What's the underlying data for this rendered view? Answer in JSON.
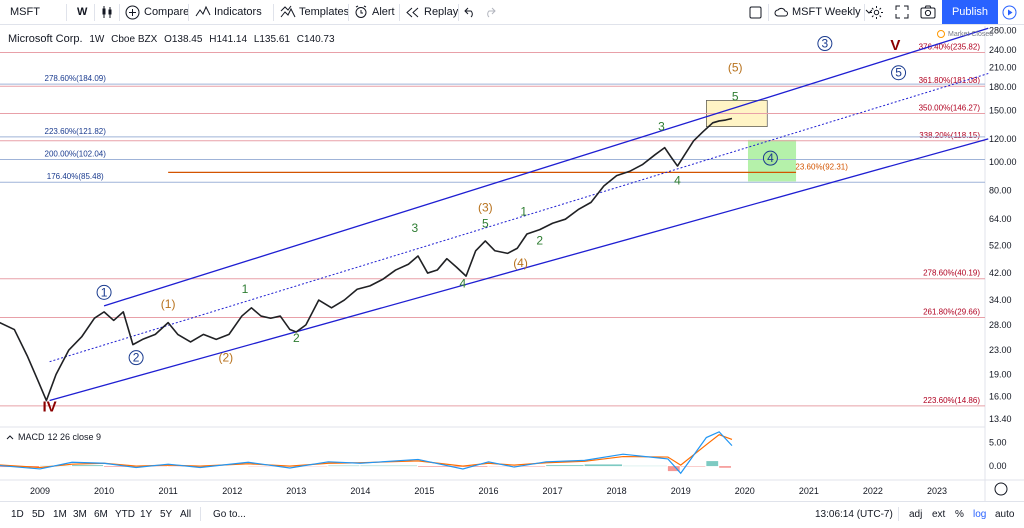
{
  "toolbar": {
    "symbol": "MSFT",
    "interval": "W",
    "compare": "Compare",
    "indicators": "Indicators",
    "templates": "Templates",
    "alert": "Alert",
    "replay": "Replay",
    "layout_name": "MSFT Weekly",
    "publish": "Publish"
  },
  "legend": {
    "name": "Microsoft Corp.",
    "interval": "1W",
    "exchange": "Cboe BZX",
    "open": "O138.45",
    "high": "H141.14",
    "low": "L135.61",
    "close": "C140.73"
  },
  "market_status": "Market Closed",
  "macd": {
    "label": "MACD",
    "params": "12 26 close 9"
  },
  "bottom": {
    "ranges": [
      "1D",
      "5D",
      "1M",
      "3M",
      "6M",
      "YTD",
      "1Y",
      "5Y",
      "All"
    ],
    "goto": "Go to...",
    "time": "13:06:14 (UTC-7)",
    "options": [
      "adj",
      "ext",
      "%",
      "log",
      "auto"
    ]
  },
  "colors": {
    "brand": "#2962ff",
    "channel": "#1e1ed2",
    "wave_green": "#2e7d32",
    "wave_orange": "#b8721d",
    "wave_dark": "#8b0000",
    "fib_red": "#b00020",
    "fib_blue": "#1a3b8f"
  },
  "chart_data": {
    "type": "line",
    "title": "Microsoft Corp. 1W Cboe BZX",
    "scale": "log",
    "x_axis": {
      "tick_labels": [
        "2009",
        "2010",
        "2011",
        "2012",
        "2013",
        "2014",
        "2015",
        "2016",
        "2017",
        "2018",
        "2019",
        "2020",
        "2021",
        "2022",
        "2023"
      ]
    },
    "y_axis": {
      "tick_labels": [
        "280.00",
        "240.00",
        "210.00",
        "180.00",
        "150.00",
        "120.00",
        "100.00",
        "80.00",
        "64.00",
        "52.00",
        "42.00",
        "34.00",
        "28.00",
        "23.00",
        "19.00",
        "16.00",
        "13.40"
      ],
      "ylim": [
        12.6,
        290
      ]
    },
    "macd_axis": {
      "tick_labels": [
        "5.00",
        "0.00"
      ]
    },
    "price_series": [
      {
        "x": 2008.3,
        "y": 29
      },
      {
        "x": 2008.6,
        "y": 27
      },
      {
        "x": 2008.8,
        "y": 22
      },
      {
        "x": 2008.95,
        "y": 18.5
      },
      {
        "x": 2009.1,
        "y": 15.5
      },
      {
        "x": 2009.25,
        "y": 19
      },
      {
        "x": 2009.45,
        "y": 23
      },
      {
        "x": 2009.65,
        "y": 25.5
      },
      {
        "x": 2009.85,
        "y": 29.5
      },
      {
        "x": 2010.0,
        "y": 31
      },
      {
        "x": 2010.15,
        "y": 29
      },
      {
        "x": 2010.3,
        "y": 31
      },
      {
        "x": 2010.45,
        "y": 24
      },
      {
        "x": 2010.6,
        "y": 25
      },
      {
        "x": 2010.8,
        "y": 26
      },
      {
        "x": 2011.0,
        "y": 28.5
      },
      {
        "x": 2011.15,
        "y": 26
      },
      {
        "x": 2011.35,
        "y": 24.5
      },
      {
        "x": 2011.55,
        "y": 26
      },
      {
        "x": 2011.75,
        "y": 25
      },
      {
        "x": 2011.95,
        "y": 26
      },
      {
        "x": 2012.15,
        "y": 30
      },
      {
        "x": 2012.3,
        "y": 32
      },
      {
        "x": 2012.45,
        "y": 30
      },
      {
        "x": 2012.6,
        "y": 29.5
      },
      {
        "x": 2012.75,
        "y": 30
      },
      {
        "x": 2012.9,
        "y": 27
      },
      {
        "x": 2013.0,
        "y": 26.5
      },
      {
        "x": 2013.15,
        "y": 28
      },
      {
        "x": 2013.35,
        "y": 34
      },
      {
        "x": 2013.55,
        "y": 32
      },
      {
        "x": 2013.75,
        "y": 34
      },
      {
        "x": 2013.95,
        "y": 37
      },
      {
        "x": 2014.15,
        "y": 38
      },
      {
        "x": 2014.35,
        "y": 40
      },
      {
        "x": 2014.55,
        "y": 43
      },
      {
        "x": 2014.75,
        "y": 45
      },
      {
        "x": 2014.9,
        "y": 48
      },
      {
        "x": 2015.05,
        "y": 42
      },
      {
        "x": 2015.2,
        "y": 43
      },
      {
        "x": 2015.35,
        "y": 47
      },
      {
        "x": 2015.5,
        "y": 44
      },
      {
        "x": 2015.65,
        "y": 41
      },
      {
        "x": 2015.8,
        "y": 50
      },
      {
        "x": 2015.95,
        "y": 54
      },
      {
        "x": 2016.1,
        "y": 50
      },
      {
        "x": 2016.3,
        "y": 49
      },
      {
        "x": 2016.45,
        "y": 51
      },
      {
        "x": 2016.6,
        "y": 57
      },
      {
        "x": 2016.8,
        "y": 59
      },
      {
        "x": 2017.0,
        "y": 62
      },
      {
        "x": 2017.2,
        "y": 64
      },
      {
        "x": 2017.4,
        "y": 69
      },
      {
        "x": 2017.6,
        "y": 73
      },
      {
        "x": 2017.8,
        "y": 83
      },
      {
        "x": 2018.0,
        "y": 90
      },
      {
        "x": 2018.2,
        "y": 93
      },
      {
        "x": 2018.4,
        "y": 98
      },
      {
        "x": 2018.6,
        "y": 106
      },
      {
        "x": 2018.75,
        "y": 112
      },
      {
        "x": 2018.85,
        "y": 104
      },
      {
        "x": 2018.95,
        "y": 97
      },
      {
        "x": 2019.05,
        "y": 105
      },
      {
        "x": 2019.2,
        "y": 118
      },
      {
        "x": 2019.35,
        "y": 127
      },
      {
        "x": 2019.5,
        "y": 136
      },
      {
        "x": 2019.6,
        "y": 138
      },
      {
        "x": 2019.7,
        "y": 139
      },
      {
        "x": 2019.8,
        "y": 140.7
      }
    ],
    "macd_series": {
      "macd": [
        {
          "x": 2008.3,
          "y": 0.2
        },
        {
          "x": 2009.0,
          "y": -0.6
        },
        {
          "x": 2009.5,
          "y": 0.8
        },
        {
          "x": 2010.0,
          "y": 0.6
        },
        {
          "x": 2010.5,
          "y": -0.3
        },
        {
          "x": 2011.0,
          "y": 0.4
        },
        {
          "x": 2011.5,
          "y": -0.3
        },
        {
          "x": 2012.25,
          "y": 0.8
        },
        {
          "x": 2012.9,
          "y": -0.4
        },
        {
          "x": 2013.5,
          "y": 0.9
        },
        {
          "x": 2014.0,
          "y": 0.6
        },
        {
          "x": 2014.9,
          "y": 1.4
        },
        {
          "x": 2015.6,
          "y": -0.6
        },
        {
          "x": 2016.0,
          "y": 0.9
        },
        {
          "x": 2016.4,
          "y": -0.2
        },
        {
          "x": 2016.9,
          "y": 0.9
        },
        {
          "x": 2017.5,
          "y": 1.2
        },
        {
          "x": 2018.1,
          "y": 2.5
        },
        {
          "x": 2018.8,
          "y": 1.5
        },
        {
          "x": 2019.0,
          "y": -1.5
        },
        {
          "x": 2019.4,
          "y": 6.0
        },
        {
          "x": 2019.6,
          "y": 7.2
        },
        {
          "x": 2019.8,
          "y": 4.3
        }
      ],
      "signal": [
        {
          "x": 2008.3,
          "y": 0.3
        },
        {
          "x": 2009.0,
          "y": -0.3
        },
        {
          "x": 2009.5,
          "y": 0.4
        },
        {
          "x": 2010.0,
          "y": 0.6
        },
        {
          "x": 2010.5,
          "y": 0.0
        },
        {
          "x": 2011.0,
          "y": 0.2
        },
        {
          "x": 2011.5,
          "y": 0.0
        },
        {
          "x": 2012.25,
          "y": 0.5
        },
        {
          "x": 2012.9,
          "y": 0.0
        },
        {
          "x": 2013.5,
          "y": 0.6
        },
        {
          "x": 2014.0,
          "y": 0.7
        },
        {
          "x": 2014.9,
          "y": 1.1
        },
        {
          "x": 2015.6,
          "y": 0.0
        },
        {
          "x": 2016.0,
          "y": 0.6
        },
        {
          "x": 2016.4,
          "y": 0.2
        },
        {
          "x": 2016.9,
          "y": 0.7
        },
        {
          "x": 2017.5,
          "y": 1.0
        },
        {
          "x": 2018.1,
          "y": 2.0
        },
        {
          "x": 2018.8,
          "y": 1.9
        },
        {
          "x": 2019.0,
          "y": 0.2
        },
        {
          "x": 2019.4,
          "y": 4.5
        },
        {
          "x": 2019.6,
          "y": 6.6
        },
        {
          "x": 2019.8,
          "y": 5.6
        }
      ]
    },
    "fib_levels": [
      {
        "label": "376.40%(235.82)",
        "value": 235.82,
        "side": "right",
        "color": "red"
      },
      {
        "label": "361.80%(181.08)",
        "value": 181.08,
        "side": "right",
        "color": "red"
      },
      {
        "label": "350.00%(146.27)",
        "value": 146.27,
        "side": "right",
        "color": "red"
      },
      {
        "label": "338.20%(118.15)",
        "value": 118.15,
        "side": "right",
        "color": "red"
      },
      {
        "label": "278.60%(40.19)",
        "value": 40.19,
        "side": "right",
        "color": "red"
      },
      {
        "label": "261.80%(29.66)",
        "value": 29.66,
        "side": "right",
        "color": "red"
      },
      {
        "label": "223.60%(14.86)",
        "value": 14.86,
        "side": "right",
        "color": "red"
      },
      {
        "label": "278.60%(184.09)",
        "value": 184.09,
        "side": "left",
        "color": "blue"
      },
      {
        "label": "223.60%(121.82)",
        "value": 121.82,
        "side": "left",
        "color": "blue"
      },
      {
        "label": "200.00%(102.04)",
        "value": 102.04,
        "side": "left",
        "color": "blue"
      },
      {
        "label": "176.40%(85.48)",
        "value": 85.48,
        "side": "left",
        "color": "blue"
      },
      {
        "label": "23.60%(92.31)",
        "value": 92.31,
        "side": "short",
        "color": "orange"
      }
    ],
    "wave_labels": [
      {
        "text": "IV",
        "x": 2009.15,
        "y": 14.2,
        "style": "dark"
      },
      {
        "text": "V",
        "x": 2022.35,
        "y": 240,
        "style": "dark"
      },
      {
        "text": "1",
        "x": 2010.0,
        "y": 35,
        "style": "circle"
      },
      {
        "text": "2",
        "x": 2010.5,
        "y": 21,
        "style": "circle"
      },
      {
        "text": "3",
        "x": 2021.25,
        "y": 245,
        "style": "circle"
      },
      {
        "text": "4",
        "x": 2020.4,
        "y": 100,
        "style": "circle-green"
      },
      {
        "text": "5",
        "x": 2022.4,
        "y": 195,
        "style": "circle"
      },
      {
        "text": "(1)",
        "x": 2011.0,
        "y": 32,
        "style": "orange"
      },
      {
        "text": "(2)",
        "x": 2011.9,
        "y": 21,
        "style": "orange"
      },
      {
        "text": "(3)",
        "x": 2015.95,
        "y": 68,
        "style": "orange"
      },
      {
        "text": "(4)",
        "x": 2016.5,
        "y": 44,
        "style": "orange"
      },
      {
        "text": "(5)",
        "x": 2019.85,
        "y": 203,
        "style": "orange"
      },
      {
        "text": "1",
        "x": 2012.2,
        "y": 36,
        "style": "green"
      },
      {
        "text": "2",
        "x": 2013.0,
        "y": 24.5,
        "style": "green"
      },
      {
        "text": "3",
        "x": 2014.85,
        "y": 58,
        "style": "green"
      },
      {
        "text": "4",
        "x": 2015.6,
        "y": 37.5,
        "style": "green"
      },
      {
        "text": "5",
        "x": 2015.95,
        "y": 60,
        "style": "green"
      },
      {
        "text": "1",
        "x": 2016.55,
        "y": 66,
        "style": "green"
      },
      {
        "text": "2",
        "x": 2016.8,
        "y": 52.5,
        "style": "green"
      },
      {
        "text": "3",
        "x": 2018.7,
        "y": 128,
        "style": "green"
      },
      {
        "text": "4",
        "x": 2018.95,
        "y": 84,
        "style": "green"
      },
      {
        "text": "5",
        "x": 2019.85,
        "y": 162,
        "style": "green"
      }
    ],
    "channel": {
      "upper": [
        {
          "x": 2010.0,
          "y": 32.5
        },
        {
          "x": 2023.8,
          "y": 285
        }
      ],
      "lower": [
        {
          "x": 2009.15,
          "y": 15.5
        },
        {
          "x": 2023.8,
          "y": 120
        }
      ],
      "middle": [
        {
          "x": 2009.15,
          "y": 21
        },
        {
          "x": 2023.8,
          "y": 200
        }
      ]
    },
    "zones": [
      {
        "x0": 2019.4,
        "x1": 2020.35,
        "y0": 132,
        "y1": 162,
        "color": "yellow"
      },
      {
        "x0": 2020.05,
        "x1": 2020.8,
        "y0": 86,
        "y1": 119,
        "color": "green"
      }
    ]
  }
}
